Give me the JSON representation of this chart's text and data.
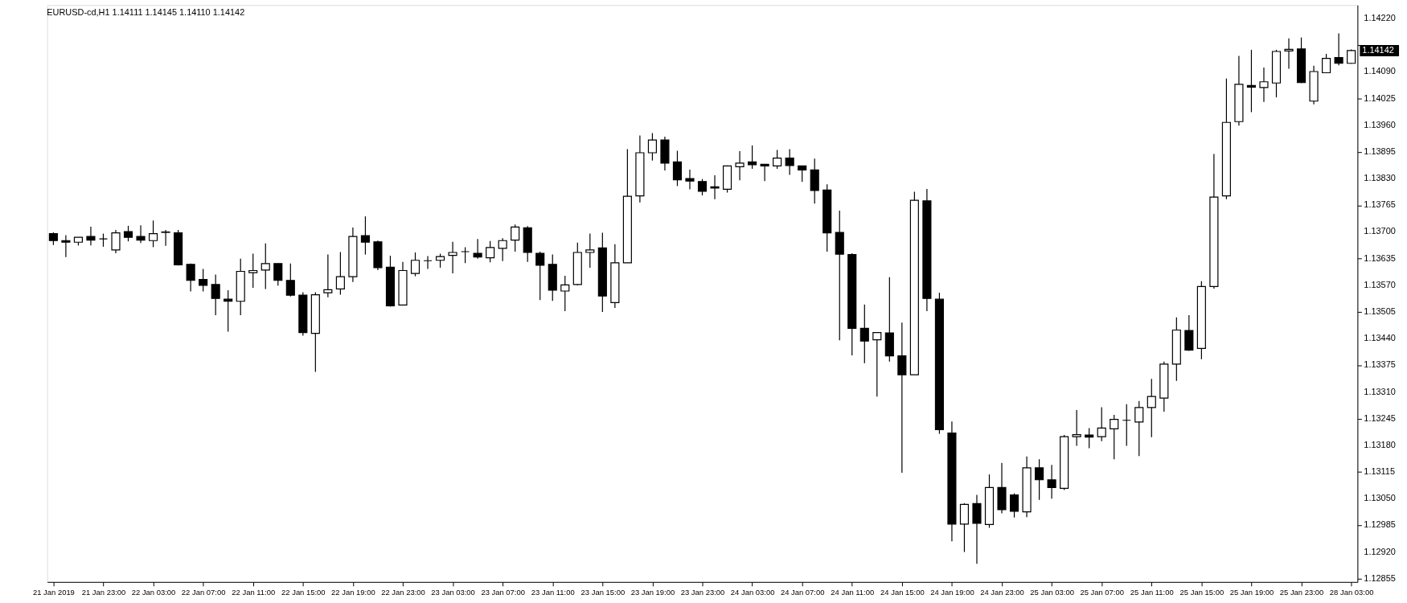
{
  "chart_data": {
    "type": "candlestick",
    "title": "EURUSD-cd,H1  1.14111 1.14145 1.14110 1.14142",
    "categories": [
      "21 Jan 2019",
      null,
      null,
      null,
      "21 Jan 23:00",
      null,
      null,
      null,
      "22 Jan 03:00",
      null,
      null,
      null,
      "22 Jan 07:00",
      null,
      null,
      null,
      "22 Jan 11:00",
      null,
      null,
      null,
      "22 Jan 15:00",
      null,
      null,
      null,
      "22 Jan 19:00",
      null,
      null,
      null,
      "22 Jan 23:00",
      null,
      null,
      null,
      "23 Jan 03:00",
      null,
      null,
      null,
      "23 Jan 07:00",
      null,
      null,
      null,
      "23 Jan 11:00",
      null,
      null,
      null,
      "23 Jan 15:00",
      null,
      null,
      null,
      "23 Jan 19:00",
      null,
      null,
      null,
      "23 Jan 23:00",
      null,
      null,
      null,
      "24 Jan 03:00",
      null,
      null,
      null,
      "24 Jan 07:00",
      null,
      null,
      null,
      "24 Jan 11:00",
      null,
      null,
      null,
      "24 Jan 15:00",
      null,
      null,
      null,
      "24 Jan 19:00",
      null,
      null,
      null,
      "24 Jan 23:00",
      null,
      null,
      null,
      "25 Jan 03:00",
      null,
      null,
      null,
      "25 Jan 07:00",
      null,
      null,
      null,
      "25 Jan 11:00",
      null,
      null,
      null,
      "25 Jan 15:00",
      null,
      null,
      null,
      "25 Jan 19:00",
      null,
      null,
      null,
      "25 Jan 23:00",
      null,
      null,
      null,
      "28 Jan 03:00"
    ],
    "ohlc": [
      [
        1.13696,
        1.13699,
        1.13668,
        1.13679
      ],
      [
        1.13679,
        1.13692,
        1.13639,
        1.13675
      ],
      [
        1.13675,
        1.13687,
        1.13667,
        1.13687
      ],
      [
        1.13689,
        1.13713,
        1.13667,
        1.1368
      ],
      [
        1.13683,
        1.13696,
        1.13664,
        1.13683
      ],
      [
        1.13656,
        1.13705,
        1.13648,
        1.13698
      ],
      [
        1.13701,
        1.13715,
        1.13677,
        1.13687
      ],
      [
        1.13689,
        1.13716,
        1.13673,
        1.1368
      ],
      [
        1.13679,
        1.13728,
        1.13663,
        1.13696
      ],
      [
        1.137,
        1.13705,
        1.13666,
        1.13699
      ],
      [
        1.13698,
        1.13705,
        1.13618,
        1.1362
      ],
      [
        1.13621,
        1.13623,
        1.13555,
        1.13582
      ],
      [
        1.13584,
        1.1361,
        1.13555,
        1.1357
      ],
      [
        1.13572,
        1.13596,
        1.13497,
        1.13538
      ],
      [
        1.13536,
        1.13558,
        1.13457,
        1.13531
      ],
      [
        1.13531,
        1.13635,
        1.13497,
        1.13604
      ],
      [
        1.13601,
        1.13647,
        1.13564,
        1.13606
      ],
      [
        1.13607,
        1.13672,
        1.13561,
        1.13623
      ],
      [
        1.13623,
        1.13623,
        1.13569,
        1.13582
      ],
      [
        1.13582,
        1.13623,
        1.13543,
        1.13546
      ],
      [
        1.13546,
        1.13553,
        1.13447,
        1.13455
      ],
      [
        1.13453,
        1.13553,
        1.13359,
        1.13547
      ],
      [
        1.13552,
        1.13645,
        1.13541,
        1.13559
      ],
      [
        1.13561,
        1.13651,
        1.13547,
        1.13591
      ],
      [
        1.13591,
        1.13711,
        1.13578,
        1.13689
      ],
      [
        1.13691,
        1.13738,
        1.13645,
        1.13675
      ],
      [
        1.13676,
        1.13679,
        1.13607,
        1.13613
      ],
      [
        1.13614,
        1.13642,
        1.13518,
        1.1352
      ],
      [
        1.13522,
        1.13627,
        1.13521,
        1.13606
      ],
      [
        1.13599,
        1.1365,
        1.13592,
        1.13631
      ],
      [
        1.1363,
        1.13641,
        1.1361,
        1.1363
      ],
      [
        1.13631,
        1.13647,
        1.13613,
        1.1364
      ],
      [
        1.13643,
        1.13676,
        1.13599,
        1.1365
      ],
      [
        1.13652,
        1.13663,
        1.13624,
        1.13652
      ],
      [
        1.13648,
        1.13683,
        1.13635,
        1.13639
      ],
      [
        1.13637,
        1.13678,
        1.13626,
        1.13662
      ],
      [
        1.1366,
        1.13685,
        1.13629,
        1.13679
      ],
      [
        1.1368,
        1.13718,
        1.13652,
        1.13712
      ],
      [
        1.1371,
        1.13714,
        1.13627,
        1.1365
      ],
      [
        1.13648,
        1.13652,
        1.13534,
        1.13619
      ],
      [
        1.13621,
        1.13645,
        1.13532,
        1.13558
      ],
      [
        1.13556,
        1.13593,
        1.13507,
        1.13571
      ],
      [
        1.13572,
        1.13674,
        1.1357,
        1.1365
      ],
      [
        1.1365,
        1.13696,
        1.13613,
        1.13656
      ],
      [
        1.13661,
        1.13698,
        1.13505,
        1.13544
      ],
      [
        1.13528,
        1.1367,
        1.13515,
        1.13625
      ],
      [
        1.13625,
        1.13902,
        1.13625,
        1.13787
      ],
      [
        1.13788,
        1.13935,
        1.13772,
        1.13893
      ],
      [
        1.13893,
        1.13941,
        1.13874,
        1.13924
      ],
      [
        1.13924,
        1.13932,
        1.1385,
        1.13868
      ],
      [
        1.13871,
        1.13898,
        1.13812,
        1.13827
      ],
      [
        1.1383,
        1.13852,
        1.13804,
        1.13824
      ],
      [
        1.13823,
        1.13829,
        1.13789,
        1.13799
      ],
      [
        1.1381,
        1.13838,
        1.1378,
        1.13807
      ],
      [
        1.13804,
        1.13862,
        1.13796,
        1.13861
      ],
      [
        1.13859,
        1.13897,
        1.13826,
        1.13868
      ],
      [
        1.13871,
        1.13911,
        1.13854,
        1.13864
      ],
      [
        1.13865,
        1.13865,
        1.13824,
        1.13861
      ],
      [
        1.13861,
        1.139,
        1.13854,
        1.1388
      ],
      [
        1.1388,
        1.13902,
        1.13839,
        1.13862
      ],
      [
        1.13861,
        1.13861,
        1.13822,
        1.13851
      ],
      [
        1.13851,
        1.13879,
        1.13769,
        1.13801
      ],
      [
        1.13802,
        1.13816,
        1.13652,
        1.13698
      ],
      [
        1.13699,
        1.13752,
        1.13436,
        1.13646
      ],
      [
        1.13645,
        1.13648,
        1.13399,
        1.13465
      ],
      [
        1.13465,
        1.13523,
        1.1338,
        1.13434
      ],
      [
        1.13437,
        1.13455,
        1.13299,
        1.13455
      ],
      [
        1.13454,
        1.1359,
        1.13384,
        1.13398
      ],
      [
        1.13398,
        1.13479,
        1.13113,
        1.13352
      ],
      [
        1.13352,
        1.13798,
        1.13352,
        1.13777
      ],
      [
        1.13776,
        1.13805,
        1.13507,
        1.13538
      ],
      [
        1.13536,
        1.13552,
        1.13208,
        1.13218
      ],
      [
        1.1321,
        1.13238,
        1.12946,
        1.12988
      ],
      [
        1.12988,
        1.13039,
        1.1292,
        1.13036
      ],
      [
        1.13038,
        1.13059,
        1.12891,
        1.1299
      ],
      [
        1.12987,
        1.13109,
        1.12979,
        1.13077
      ],
      [
        1.13077,
        1.13137,
        1.13014,
        1.13023
      ],
      [
        1.13059,
        1.13063,
        1.13004,
        1.13019
      ],
      [
        1.13018,
        1.13153,
        1.13005,
        1.13125
      ],
      [
        1.13125,
        1.13146,
        1.13047,
        1.13096
      ],
      [
        1.13096,
        1.13132,
        1.1305,
        1.13077
      ],
      [
        1.13075,
        1.13205,
        1.13071,
        1.13201
      ],
      [
        1.13201,
        1.13266,
        1.13179,
        1.13206
      ],
      [
        1.13205,
        1.13222,
        1.13173,
        1.132
      ],
      [
        1.13201,
        1.13273,
        1.1319,
        1.13222
      ],
      [
        1.1322,
        1.13254,
        1.13146,
        1.13243
      ],
      [
        1.13241,
        1.1328,
        1.13179,
        1.13241
      ],
      [
        1.13237,
        1.13288,
        1.13154,
        1.13272
      ],
      [
        1.13272,
        1.13342,
        1.132,
        1.13299
      ],
      [
        1.13295,
        1.13384,
        1.13262,
        1.13378
      ],
      [
        1.13378,
        1.13492,
        1.13337,
        1.13461
      ],
      [
        1.1346,
        1.13497,
        1.1341,
        1.13412
      ],
      [
        1.13416,
        1.1358,
        1.1339,
        1.13567
      ],
      [
        1.13567,
        1.1389,
        1.13562,
        1.13785
      ],
      [
        1.13788,
        1.14074,
        1.1378,
        1.13967
      ],
      [
        1.13969,
        1.14129,
        1.13959,
        1.1406
      ],
      [
        1.14057,
        1.14144,
        1.13992,
        1.14053
      ],
      [
        1.14052,
        1.14101,
        1.14017,
        1.14066
      ],
      [
        1.14063,
        1.14144,
        1.14028,
        1.1414
      ],
      [
        1.14141,
        1.14172,
        1.14098,
        1.14145
      ],
      [
        1.14146,
        1.14174,
        1.14063,
        1.14064
      ],
      [
        1.14019,
        1.14105,
        1.14011,
        1.14091
      ],
      [
        1.14088,
        1.14134,
        1.14088,
        1.14123
      ],
      [
        1.14125,
        1.14184,
        1.14106,
        1.14111
      ],
      [
        1.14111,
        1.14145,
        1.1411,
        1.14142
      ]
    ],
    "ylim": [
      1.12847,
      1.14253
    ],
    "yticks": [
      1.12855,
      {
        "value": 1.1292,
        "label": "1.12920"
      },
      1.12985,
      {
        "value": 1.1305,
        "label": "1.13050"
      },
      1.13115,
      {
        "value": 1.1318,
        "label": "1.13180"
      },
      1.13245,
      {
        "value": 1.1331,
        "label": "1.13310"
      },
      1.13375,
      {
        "value": 1.1344,
        "label": "1.13440"
      },
      1.13505,
      {
        "value": 1.1357,
        "label": "1.13570"
      },
      1.13635,
      {
        "value": 1.137,
        "label": "1.13700"
      },
      1.13765,
      {
        "value": 1.1383,
        "label": "1.13830"
      },
      1.13895,
      {
        "value": 1.1396,
        "label": "1.13960"
      },
      1.14025,
      {
        "value": 1.1409,
        "label": "1.14090"
      },
      {
        "value": 1.14155,
        "label": null
      },
      {
        "value": 1.1422,
        "label": "1.14220"
      }
    ],
    "annotations": [
      "1.14142"
    ],
    "grid": false
  }
}
